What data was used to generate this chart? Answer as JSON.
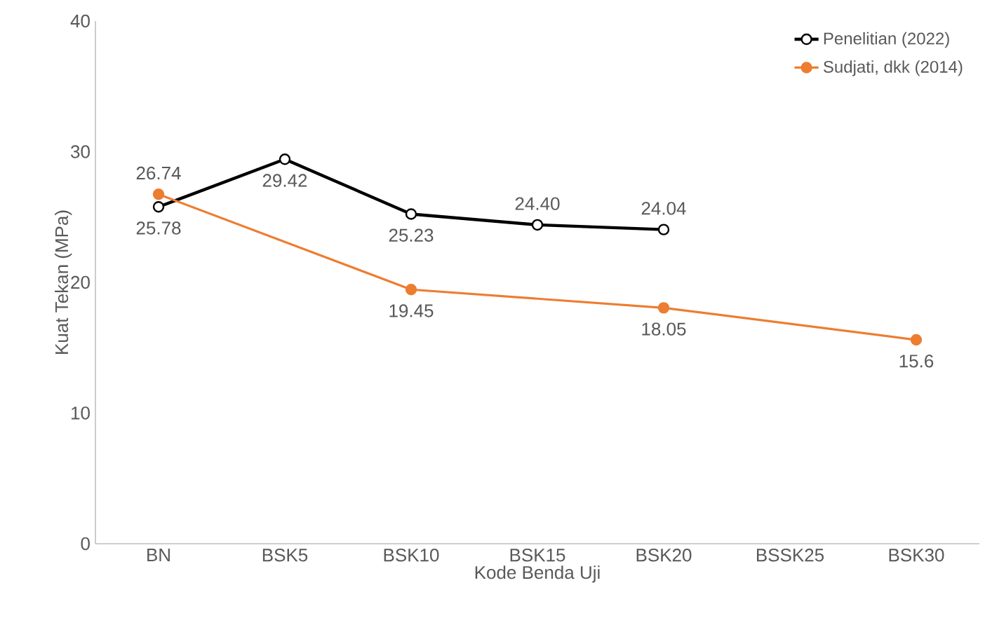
{
  "chart_data": {
    "type": "line",
    "xlabel": "Kode Benda Uji",
    "ylabel": "Kuat Tekan (MPa)",
    "categories": [
      "BN",
      "BSK5",
      "BSK10",
      "BSK15",
      "BSK20",
      "BSSK25",
      "BSK30"
    ],
    "series": [
      {
        "name": "Penelitian (2022)",
        "color": "#000000",
        "values": [
          25.78,
          29.42,
          25.23,
          24.4,
          24.04,
          null,
          null
        ],
        "value_labels": [
          "25.78",
          "29.42",
          "25.23",
          "24.40",
          "24.04",
          null,
          null
        ]
      },
      {
        "name": "Sudjati, dkk (2014)",
        "color": "#ed7d31",
        "values": [
          26.74,
          null,
          19.45,
          null,
          18.05,
          null,
          15.6
        ],
        "value_labels": [
          "26.74",
          null,
          "19.45",
          null,
          "18.05",
          null,
          "15.6"
        ]
      }
    ],
    "ylim": [
      0,
      40
    ],
    "yticks": [
      0,
      10,
      20,
      30,
      40
    ],
    "legend": "top right",
    "marker": "circle",
    "line_style": "solid"
  }
}
